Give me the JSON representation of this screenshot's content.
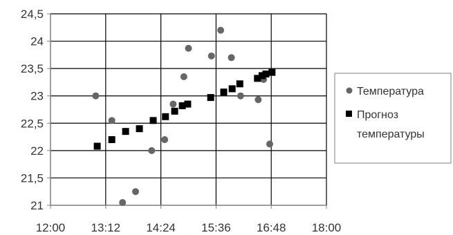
{
  "chart_data": {
    "type": "scatter",
    "title": "",
    "xlabel": "",
    "ylabel": "",
    "xlim": [
      720,
      1080
    ],
    "ylim": [
      21,
      24.5
    ],
    "x_ticks": [
      720,
      792,
      864,
      936,
      1008,
      1080
    ],
    "x_tick_labels": [
      "12:00",
      "13:12",
      "14:24",
      "15:36",
      "16:48",
      "18:00"
    ],
    "y_ticks": [
      21,
      21.5,
      22,
      22.5,
      23,
      23.5,
      24,
      24.5
    ],
    "y_tick_labels": [
      "21",
      "21,5",
      "22",
      "22,5",
      "23",
      "23,5",
      "24",
      "24,5"
    ],
    "grid": true,
    "legend_position": "right",
    "series": [
      {
        "name": "Температура",
        "marker": "circle",
        "color": "#666666",
        "points": [
          [
            779,
            23.0
          ],
          [
            800,
            22.55
          ],
          [
            814,
            21.05
          ],
          [
            831,
            21.25
          ],
          [
            852,
            22.0
          ],
          [
            869,
            22.2
          ],
          [
            880,
            22.85
          ],
          [
            894,
            23.35
          ],
          [
            900,
            23.87
          ],
          [
            930,
            23.73
          ],
          [
            942,
            24.2
          ],
          [
            956,
            23.7
          ],
          [
            968,
            23.0
          ],
          [
            991,
            22.93
          ],
          [
            998,
            23.3
          ],
          [
            1006,
            22.12
          ]
        ]
      },
      {
        "name": "Прогноз температуры",
        "name_lines": [
          "Прогноз",
          "температуры"
        ],
        "marker": "square",
        "color": "#000000",
        "points": [
          [
            781,
            22.08
          ],
          [
            800,
            22.2
          ],
          [
            818,
            22.35
          ],
          [
            836,
            22.4
          ],
          [
            854,
            22.55
          ],
          [
            870,
            22.62
          ],
          [
            882,
            22.72
          ],
          [
            892,
            22.82
          ],
          [
            899,
            22.85
          ],
          [
            929,
            22.97
          ],
          [
            946,
            23.07
          ],
          [
            957,
            23.13
          ],
          [
            967,
            23.22
          ],
          [
            990,
            23.32
          ],
          [
            996,
            23.37
          ],
          [
            1001,
            23.4
          ],
          [
            1009,
            23.43
          ]
        ]
      }
    ]
  }
}
